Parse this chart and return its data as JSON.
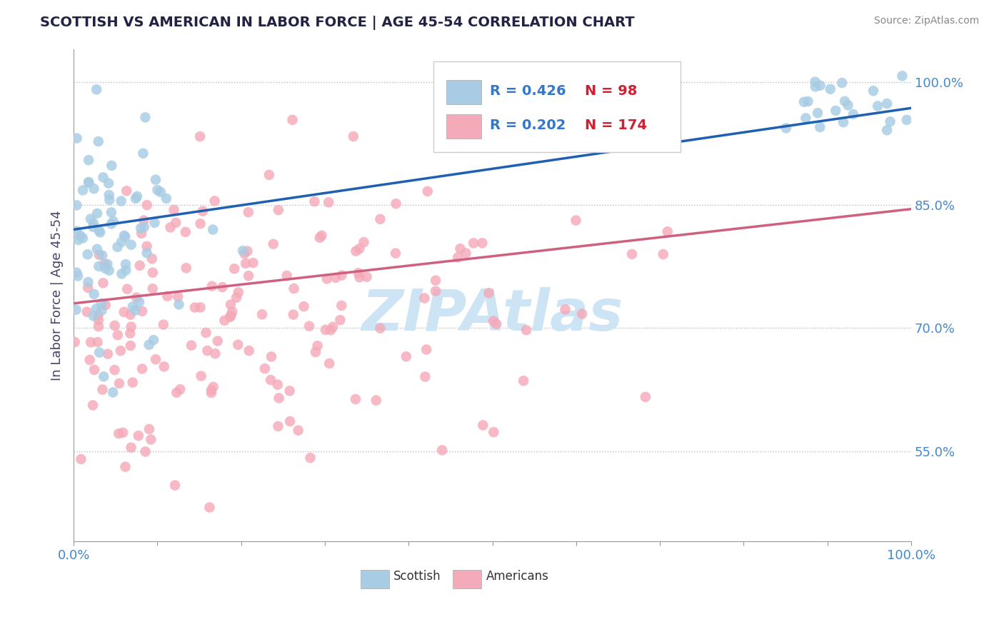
{
  "title": "SCOTTISH VS AMERICAN IN LABOR FORCE | AGE 45-54 CORRELATION CHART",
  "source": "Source: ZipAtlas.com",
  "ylabel": "In Labor Force | Age 45-54",
  "xlim": [
    0.0,
    1.0
  ],
  "ylim": [
    0.44,
    1.04
  ],
  "ytick_positions": [
    0.55,
    0.7,
    0.85,
    1.0
  ],
  "yticklabels": [
    "55.0%",
    "70.0%",
    "85.0%",
    "100.0%"
  ],
  "scottish_R": 0.426,
  "scottish_N": 98,
  "american_R": 0.202,
  "american_N": 174,
  "scottish_color": "#a8cce4",
  "american_color": "#f4aab9",
  "scottish_line_color": "#2060b0",
  "american_line_color": "#d06080",
  "background_color": "#ffffff",
  "grid_color": "#bbbbbb",
  "title_color": "#222244",
  "watermark_color": "#cce4f4",
  "legend_R_color": "#3377cc",
  "legend_N_color": "#cc2233"
}
